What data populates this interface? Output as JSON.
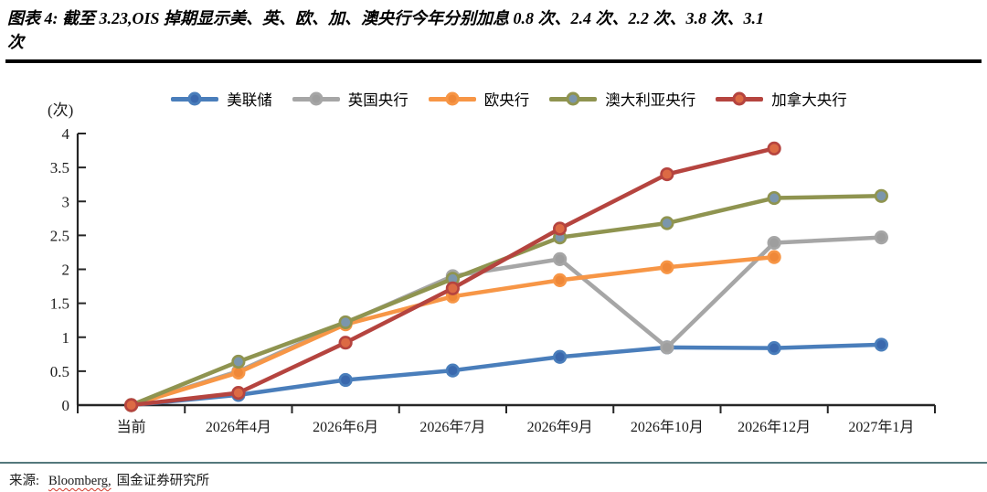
{
  "header": {
    "title_line1": "图表 4: 截至 3.23,OIS 掉期显示美、英、欧、加、澳央行今年分别加息 0.8 次、2.4 次、2.2 次、3.8 次、3.1",
    "title_line2": "次"
  },
  "footer": {
    "source_prefix": "来源:",
    "source_word": "Bloomberg,",
    "source_suffix": "国金证券研究所"
  },
  "chart_data": {
    "type": "line",
    "unit_label": "(次)",
    "categories": [
      "当前",
      "2026年4月",
      "2026年6月",
      "2026年7月",
      "2026年9月",
      "2026年10月",
      "2026年12月",
      "2027年1月"
    ],
    "ylim": [
      0,
      4
    ],
    "ytick_step": 0.5,
    "grid": false,
    "legend_position": "top",
    "xlabel": "",
    "ylabel": "(次)",
    "series": [
      {
        "name": "美联储",
        "line_color": "#4a7ebb",
        "marker_fill": "#3a68ad",
        "marker_stroke": "#4a7ebb",
        "values": [
          0,
          0.15,
          0.37,
          0.51,
          0.71,
          0.85,
          0.84,
          0.89
        ]
      },
      {
        "name": "英国央行",
        "line_color": "#a6a6a6",
        "marker_fill": "#9e9e9e",
        "marker_stroke": "#a6a6a6",
        "values": [
          0,
          0.5,
          1.21,
          1.9,
          2.15,
          0.85,
          2.39,
          2.47
        ]
      },
      {
        "name": "欧央行",
        "line_color": "#f79646",
        "marker_fill": "#ef8838",
        "marker_stroke": "#f79646",
        "values": [
          0,
          0.48,
          1.19,
          1.6,
          1.84,
          2.03,
          2.18,
          null
        ]
      },
      {
        "name": "澳大利亚央行",
        "line_color": "#8f9450",
        "marker_fill": "#7b96ac",
        "marker_stroke": "#8f9450",
        "values": [
          0,
          0.64,
          1.22,
          1.86,
          2.47,
          2.68,
          3.05,
          3.08
        ]
      },
      {
        "name": "加拿大央行",
        "line_color": "#b5443f",
        "marker_fill": "#dc6a44",
        "marker_stroke": "#b5443f",
        "values": [
          0,
          0.18,
          0.92,
          1.72,
          2.6,
          3.4,
          3.78,
          null
        ]
      }
    ]
  }
}
